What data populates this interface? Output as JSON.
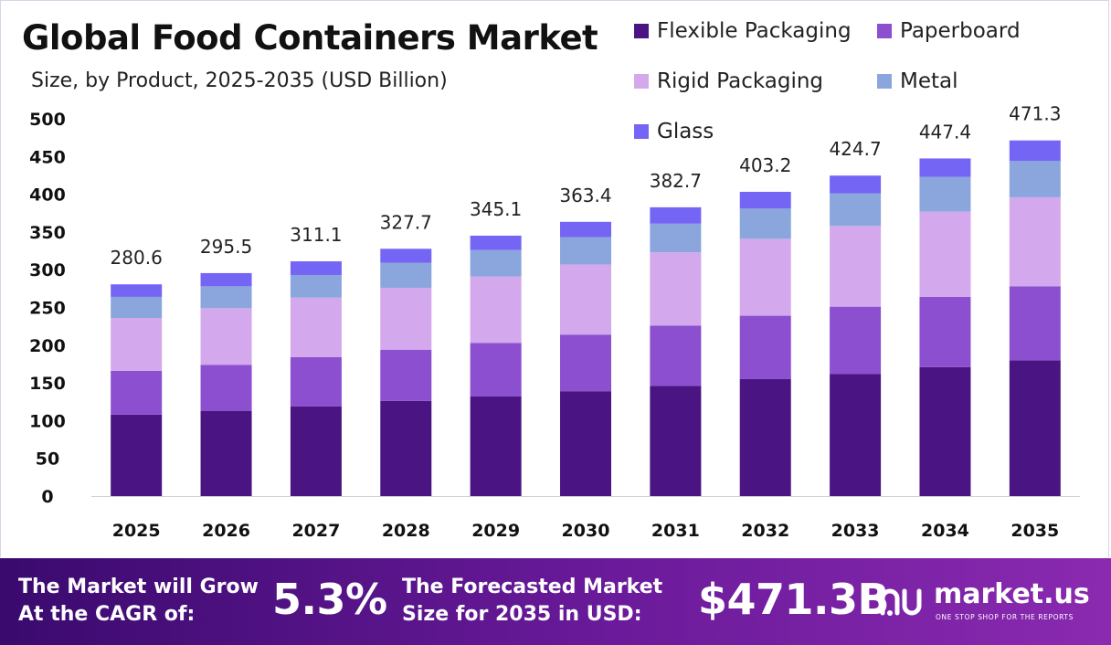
{
  "title": "Global Food Containers Market",
  "subtitle": "Size, by Product, 2025-2035 (USD Billion)",
  "legend": [
    {
      "label": "Flexible Packaging",
      "color": "#4a1582"
    },
    {
      "label": "Paperboard",
      "color": "#8b4fd0"
    },
    {
      "label": "Rigid Packaging",
      "color": "#d3a8ec"
    },
    {
      "label": "Metal",
      "color": "#8aa6dc"
    },
    {
      "label": "Glass",
      "color": "#7565f4"
    }
  ],
  "chart_data": {
    "type": "bar",
    "stacked": true,
    "categories": [
      "2025",
      "2026",
      "2027",
      "2028",
      "2029",
      "2030",
      "2031",
      "2032",
      "2033",
      "2034",
      "2035"
    ],
    "ylim": [
      0,
      500
    ],
    "yticks": [
      "0",
      "50",
      "100",
      "150",
      "200",
      "250",
      "300",
      "350",
      "400",
      "450",
      "500"
    ],
    "totals": [
      "280.6",
      "295.5",
      "311.1",
      "327.7",
      "345.1",
      "363.4",
      "382.7",
      "403.2",
      "424.7",
      "447.4",
      "471.3"
    ],
    "series": [
      {
        "name": "Flexible Packaging",
        "color": "#4a1582",
        "values": [
          108,
          113,
          119,
          126,
          132,
          139,
          146,
          155,
          162,
          171,
          180
        ]
      },
      {
        "name": "Paperboard",
        "color": "#8b4fd0",
        "values": [
          58,
          61,
          65,
          68,
          71,
          75,
          80,
          84,
          89,
          93,
          98
        ]
      },
      {
        "name": "Rigid Packaging",
        "color": "#d3a8ec",
        "values": [
          70,
          75,
          79,
          82,
          88,
          93,
          97,
          102,
          107,
          113,
          118
        ]
      },
      {
        "name": "Metal",
        "color": "#8aa6dc",
        "values": [
          28,
          29,
          30,
          33,
          35,
          36,
          38,
          40,
          43,
          46,
          48
        ]
      },
      {
        "name": "Glass",
        "color": "#7565f4",
        "values": [
          16.6,
          17.5,
          18.1,
          18.7,
          19.1,
          20.4,
          21.7,
          22.2,
          23.7,
          24.4,
          27.3
        ]
      }
    ],
    "grid": false,
    "legend_position": "top-right"
  },
  "footer": {
    "cagr_text_1": "The Market will Grow",
    "cagr_text_2": "At the CAGR of:",
    "cagr_value": "5.3%",
    "forecast_text_1": "The Forecasted Market",
    "forecast_text_2": "Size for 2035 in USD:",
    "forecast_value": "$471.3B",
    "logo_name": "market.us",
    "logo_tagline": "ONE STOP SHOP FOR THE REPORTS"
  }
}
